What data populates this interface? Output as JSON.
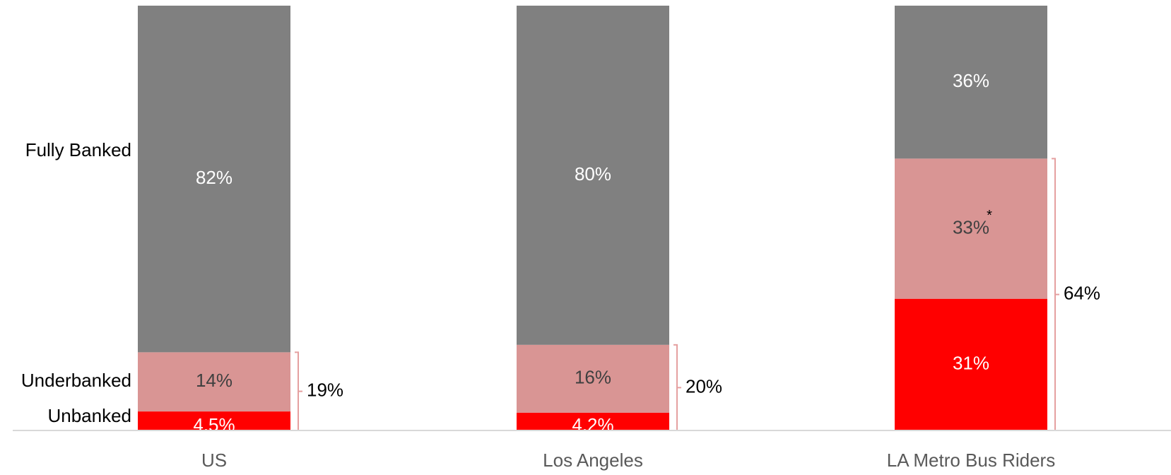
{
  "chart_data": {
    "type": "bar",
    "stacked": true,
    "categories": [
      "US",
      "Los Angeles",
      "LA Metro Bus Riders"
    ],
    "series": [
      {
        "name": "Unbanked",
        "values": [
          4.5,
          4.2,
          31
        ],
        "labels": [
          "4.5%",
          "4.2%",
          "31%"
        ],
        "color": "#ff0000",
        "label_color": "#ffffff"
      },
      {
        "name": "Underbanked",
        "values": [
          14,
          16,
          33
        ],
        "labels": [
          "14%",
          "16%",
          "33%"
        ],
        "color": "#d99594",
        "label_color": "#404040"
      },
      {
        "name": "Fully Banked",
        "values": [
          82,
          80,
          36
        ],
        "labels": [
          "82%",
          "80%",
          "36%"
        ],
        "color": "#808080",
        "label_color": "#ffffff"
      }
    ],
    "bracket_totals": [
      "19%",
      "20%",
      "64%"
    ],
    "bracket_color": "#e5a0a0",
    "footnote_marker": "*",
    "ylim": [
      0,
      100
    ],
    "grid": false,
    "legend": "left side labels"
  }
}
